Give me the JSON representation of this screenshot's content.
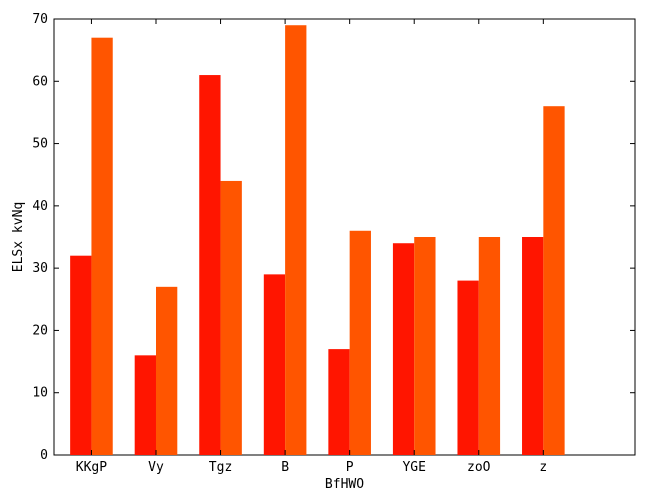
{
  "chart_data": {
    "type": "bar",
    "categories": [
      "KKgP",
      "Vy",
      "Tgz",
      "B",
      "P",
      "YGE",
      "zoO",
      "z"
    ],
    "series": [
      {
        "values": [
          32,
          16,
          61,
          29,
          17,
          34,
          28,
          35
        ],
        "color": "#ff1500"
      },
      {
        "values": [
          67,
          27,
          44,
          69,
          36,
          35,
          35,
          56
        ],
        "color": "#ff5500"
      }
    ],
    "xlabel": "BfHWO",
    "ylabel": "ELSx kvNq",
    "ylim": [
      0,
      70
    ],
    "yticks": [
      0,
      10,
      20,
      30,
      40,
      50,
      60,
      70
    ],
    "grid": false,
    "legend": "none"
  }
}
